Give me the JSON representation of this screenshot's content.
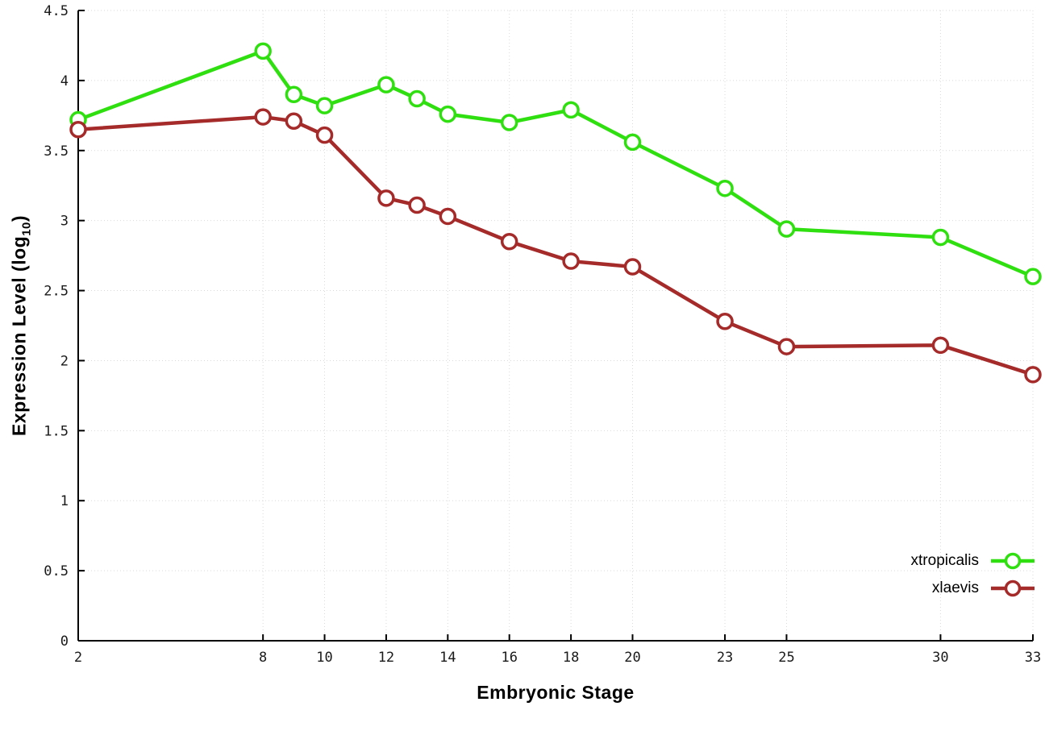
{
  "page": {
    "background": "#ffffff",
    "axis_color": "#000000",
    "grid_color": "#d9d9d9"
  },
  "chart_data": {
    "type": "line",
    "title": "",
    "xlabel": "Embryonic Stage",
    "ylabel": "Expression Level (log10)",
    "ylabel_parts": {
      "text": "Expression Level (log",
      "sub": "10",
      "close": ")"
    },
    "xlim": [
      2,
      33
    ],
    "ylim": [
      0,
      4.5
    ],
    "x_tick_values": [
      2,
      8,
      10,
      12,
      14,
      16,
      18,
      20,
      23,
      25,
      30,
      33
    ],
    "x_tick_labels": [
      "2",
      "8",
      "10",
      "12",
      "14",
      "16",
      "18",
      "20",
      "23",
      "25",
      "30",
      "33"
    ],
    "y_tick_values": [
      0,
      0.5,
      1,
      1.5,
      2,
      2.5,
      3,
      3.5,
      4,
      4.5
    ],
    "y_tick_labels": [
      "0",
      "0.5",
      "1",
      "1.5",
      "2",
      "2.5",
      "3",
      "3.5",
      "4",
      "4.5"
    ],
    "grid": true,
    "legend_position": "bottom-right",
    "marker": "open-circle",
    "x": [
      2,
      8,
      9,
      10,
      12,
      13,
      14,
      16,
      18,
      20,
      23,
      25,
      30,
      33
    ],
    "series": [
      {
        "name": "xtropicalis",
        "color": "#2fdf0f",
        "values": [
          3.72,
          4.21,
          3.9,
          3.82,
          3.97,
          3.87,
          3.76,
          3.7,
          3.79,
          3.56,
          3.23,
          2.94,
          2.88,
          2.6
        ]
      },
      {
        "name": "xlaevis",
        "color": "#a52a2a",
        "values": [
          3.65,
          3.74,
          3.71,
          3.61,
          3.16,
          3.11,
          3.03,
          2.85,
          2.71,
          2.67,
          2.28,
          2.1,
          2.11,
          1.9
        ]
      }
    ]
  }
}
